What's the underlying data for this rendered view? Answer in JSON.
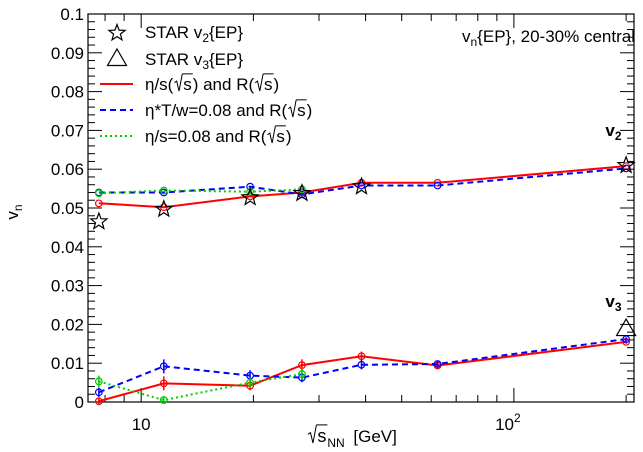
{
  "chart_data": {
    "type": "line",
    "xscale": "log",
    "xlim": [
      7.2,
      210
    ],
    "ylim": [
      0,
      0.1
    ],
    "grid": false,
    "legend_placement": "top-left",
    "x_ticks": [
      {
        "value": 10,
        "label": "10"
      },
      {
        "value": 100,
        "label": "10",
        "exp": "2"
      }
    ],
    "y_ticks": [
      {
        "value": 0,
        "label": "0"
      },
      {
        "value": 0.01,
        "label": "0.01"
      },
      {
        "value": 0.02,
        "label": "0.02"
      },
      {
        "value": 0.03,
        "label": "0.03"
      },
      {
        "value": 0.04,
        "label": "0.04"
      },
      {
        "value": 0.05,
        "label": "0.05"
      },
      {
        "value": 0.06,
        "label": "0.06"
      },
      {
        "value": 0.07,
        "label": "0.07"
      },
      {
        "value": 0.08,
        "label": "0.08"
      },
      {
        "value": 0.09,
        "label": "0.09"
      },
      {
        "value": 0.1,
        "label": "0.1"
      }
    ],
    "xlabel": {
      "radical": "s",
      "sub": "NN",
      "unit": "[GeV]"
    },
    "ylabel": {
      "main": "v",
      "sub": "n"
    },
    "annotation": {
      "main": "v",
      "sub": "n",
      "rest": "{EP}, 20-30% central"
    },
    "curve_labels": [
      {
        "main": "v",
        "sub": "2",
        "x": 185,
        "y": 0.0685
      },
      {
        "main": "v",
        "sub": "3",
        "x": 185,
        "y": 0.0245
      }
    ],
    "series": [
      {
        "name": "STAR v2{EP}",
        "legend": {
          "pre": "STAR v",
          "sub": "2",
          "post": "{EP}"
        },
        "marker": "star",
        "color": "#000000",
        "points": [
          [
            7.7,
            0.0465
          ],
          [
            11.5,
            0.0497
          ],
          [
            19.6,
            0.0527
          ],
          [
            27,
            0.0538
          ],
          [
            39,
            0.0555
          ],
          [
            200,
            0.061
          ]
        ]
      },
      {
        "name": "STAR v3{EP}",
        "legend": {
          "pre": "STAR v",
          "sub": "3",
          "post": "{EP}"
        },
        "marker": "triangle",
        "color": "#000000",
        "points": [
          [
            200,
            0.0188
          ]
        ]
      },
      {
        "name": "eta/s(sqrt s) and R(sqrt s)",
        "legend": {
          "pre": "η/s(",
          "radical": "s",
          "mid": ") and R(",
          "radical2": "s",
          "post": ")"
        },
        "style": "solid",
        "color": "#ff0000",
        "v2": [
          [
            7.7,
            0.0512
          ],
          [
            11.5,
            0.0502
          ],
          [
            19.6,
            0.053
          ],
          [
            27,
            0.054
          ],
          [
            39,
            0.0565
          ],
          [
            62.4,
            0.0565
          ],
          [
            200,
            0.0608
          ]
        ],
        "v3": [
          [
            7.7,
            0.0002
          ],
          [
            11.5,
            0.0048
          ],
          [
            19.6,
            0.0042
          ],
          [
            27,
            0.0095
          ],
          [
            39,
            0.0118
          ],
          [
            62.4,
            0.0094
          ],
          [
            200,
            0.0155
          ]
        ],
        "v3_err": [
          0.001,
          0.0018,
          0.0012,
          0.0015,
          0.0012,
          0.0008,
          0.0005
        ]
      },
      {
        "name": "eta*T/w=0.08 and R(sqrt s)",
        "legend": {
          "pre": "η*T/w=0.08 and R(",
          "radical": "s",
          "post": ")"
        },
        "style": "dashed",
        "color": "#0000ff",
        "v2": [
          [
            7.7,
            0.054
          ],
          [
            11.5,
            0.054
          ],
          [
            19.6,
            0.0555
          ],
          [
            27,
            0.0535
          ],
          [
            39,
            0.0558
          ],
          [
            62.4,
            0.0558
          ],
          [
            200,
            0.0602
          ]
        ],
        "v3": [
          [
            7.7,
            0.0025
          ],
          [
            11.5,
            0.0092
          ],
          [
            19.6,
            0.0068
          ],
          [
            27,
            0.0063
          ],
          [
            39,
            0.0096
          ],
          [
            62.4,
            0.0098
          ],
          [
            200,
            0.0162
          ]
        ],
        "v3_err": [
          0.0012,
          0.0018,
          0.0014,
          0.0012,
          0.0012,
          0.0008,
          0.0005
        ]
      },
      {
        "name": "eta/s=0.08 and R(sqrt s)",
        "legend": {
          "pre": "η/s=0.08 and R(",
          "radical": "s",
          "post": ")"
        },
        "style": "dotted",
        "color": "#00cc00",
        "v2": [
          [
            7.7,
            0.0538
          ],
          [
            11.5,
            0.0545
          ],
          [
            19.6,
            0.0542
          ],
          [
            27,
            0.0548
          ]
        ],
        "v3": [
          [
            7.7,
            0.0053
          ],
          [
            11.5,
            0.0005
          ],
          [
            19.6,
            0.005
          ],
          [
            27,
            0.0072
          ]
        ],
        "v3_err": [
          0.0015,
          0.001,
          0.0012,
          0.0014
        ]
      }
    ]
  }
}
